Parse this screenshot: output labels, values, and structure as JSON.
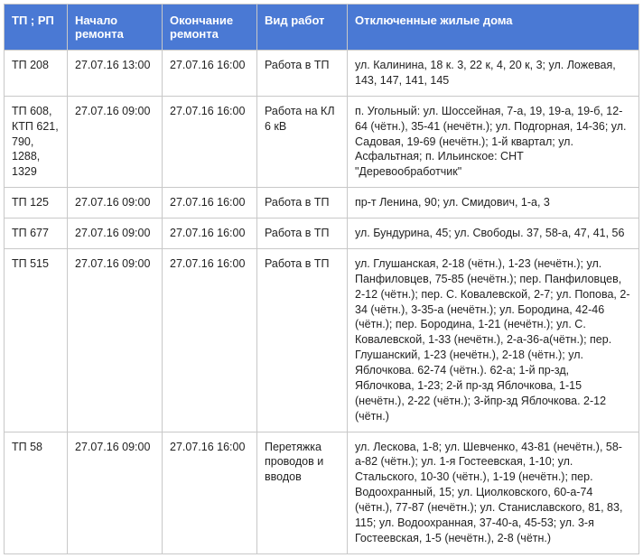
{
  "table": {
    "header_bg": "#4a79d4",
    "header_fg": "#ffffff",
    "border_color": "#c8c8c8",
    "text_color": "#222222",
    "font_size_header": 13,
    "font_size_cell": 12.5,
    "columns": [
      "ТП ; РП",
      "Начало ремонта",
      "Окончание ремонта",
      "Вид работ",
      "Отключенные жилые дома"
    ],
    "rows": [
      {
        "tp": "ТП 208",
        "start": "27.07.16 13:00",
        "end": "27.07.16 16:00",
        "work": "Работа в ТП",
        "houses": "ул. Калинина, 18 к. 3, 22 к, 4, 20 к, 3; ул. Ложевая, 143, 147, 141, 145"
      },
      {
        "tp": "ТП 608, КТП 621, 790, 1288, 1329",
        "start": "27.07.16 09:00",
        "end": "27.07.16 16:00",
        "work": "Работа на КЛ 6 кВ",
        "houses": "п. Угольный: ул. Шоссейная, 7-а, 19, 19-а, 19-б, 12-64 (чётн.),  35-41 (нечётн.); ул. Подгорная, 14-36; ул. Садовая, 19-69 (нечётн.); 1-й квартал; ул. Асфальтная; п. Ильинское: СНТ \"Деревообработчик\""
      },
      {
        "tp": "ТП 125",
        "start": "27.07.16 09:00",
        "end": "27.07.16 16:00",
        "work": "Работа в ТП",
        "houses": "пр-т Ленина, 90; ул. Смидович, 1-а, 3"
      },
      {
        "tp": "ТП 677",
        "start": "27.07.16 09:00",
        "end": "27.07.16 16:00",
        "work": "Работа в ТП",
        "houses": "ул. Бундурина, 45; ул. Свободы. 37, 58-а, 47, 41, 56"
      },
      {
        "tp": "ТП 515",
        "start": "27.07.16 09:00",
        "end": "27.07.16 16:00",
        "work": "Работа в ТП",
        "houses": "ул. Глушанская, 2-18 (чётн.), 1-23 (нечётн.); ул. Панфиловцев, 75-85 (нечётн.); пер. Панфиловцев, 2-12 (чётн.); пер. С. Ковалевской, 2-7; ул. Попова, 2-34 (чётн.), 3-35-а (нечётн.); ул. Бородина, 42-46 (чётн.); пер. Бородина, 1-21 (нечётн.); ул. С. Ковалевской, 1-33 (нечётн.), 2-а-36-а(чётн.); пер. Глушанский, 1-23 (нечётн.), 2-18 (чётн.); ул. Яблочкова. 62-74 (чётн.). 62-а; 1-й пр-зд, Яблочкова, 1-23; 2-й пр-зд Яблочкова, 1-15 (нечётн.), 2-22 (чётн.); 3-йпр-зд Яблочкова. 2-12 (чётн.)"
      },
      {
        "tp": "ТП 58",
        "start": "27.07.16 09:00",
        "end": "27.07.16 16:00",
        "work": "Перетяжка проводов и вводов",
        "houses": "ул. Лескова, 1-8; ул. Шевченко, 43-81 (нечётн.), 58-а-82 (чётн.); ул. 1-я Гостеевская, 1-10; ул. Стальского, 10-30 (чётн.), 1-19 (нечётн.); пер. Водоохранный, 15; ул. Циолковского, 60-а-74 (чётн.), 77-87 (нечётн.); ул. Станиславского, 81, 83, 115; ул. Водоохранная, 37-40-а, 45-53; ул. 3-я Гостеевская, 1-5 (нечётн.), 2-8 (чётн.)"
      }
    ]
  }
}
